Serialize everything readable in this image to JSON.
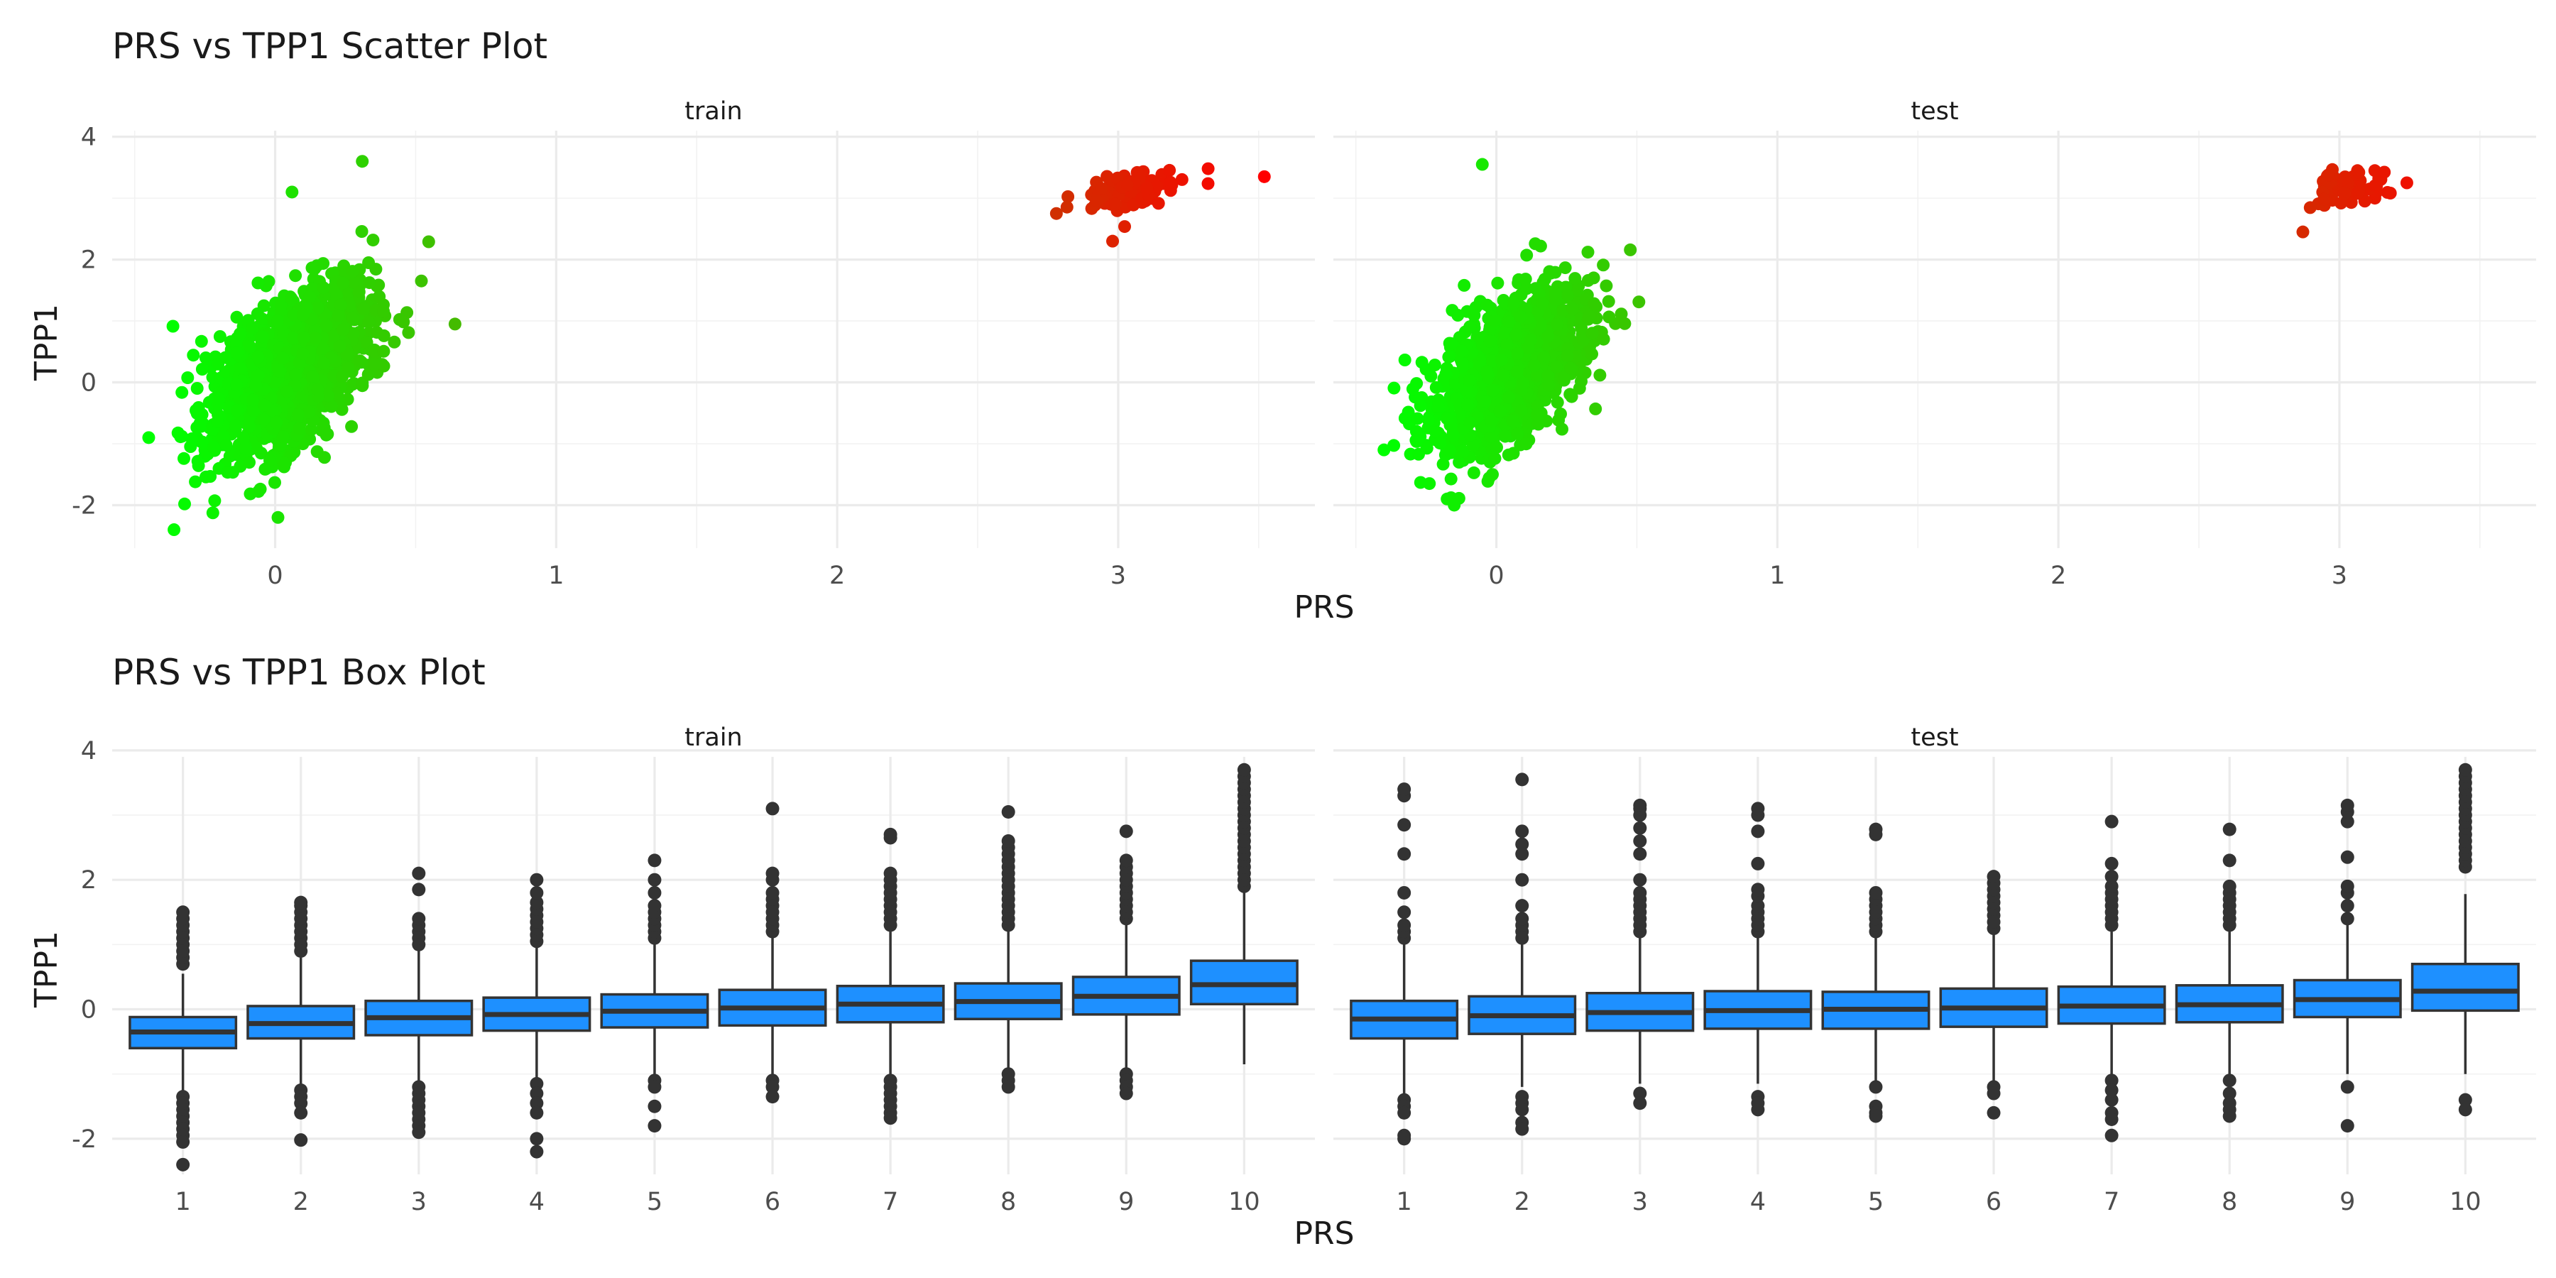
{
  "chart_data": [
    {
      "type": "scatter",
      "title": "PRS vs TPP1 Scatter Plot",
      "xlabel": "PRS",
      "ylabel": "TPP1",
      "xlim": [
        -0.58,
        3.7
      ],
      "ylim": [
        -2.7,
        4.1
      ],
      "x_ticks": [
        0,
        1,
        2,
        3
      ],
      "y_ticks": [
        -2,
        0,
        2,
        4
      ],
      "grid": true,
      "legend": "none",
      "color_scale": {
        "low": "#00ff00",
        "high": "#ff0000",
        "low_value": -0.4,
        "high_value": 3.5,
        "variable": "PRS"
      },
      "panels": [
        {
          "name": "train",
          "clusters": [
            {
              "n": 1500,
              "x_mean": 0.05,
              "x_sd": 0.14,
              "y_mean": 0.2,
              "y_sd": 0.7,
              "corr": 0.55,
              "x_range": [
                -0.4,
                0.65
              ],
              "y_range": [
                -2.3,
                3.4
              ]
            },
            {
              "n": 90,
              "x_mean": 3.05,
              "x_sd": 0.1,
              "y_mean": 3.15,
              "y_sd": 0.18,
              "corr": 0.4,
              "x_range": [
                2.8,
                3.35
              ],
              "y_range": [
                2.3,
                3.7
              ]
            }
          ],
          "points": [
            {
              "x": -0.36,
              "y": -2.4
            },
            {
              "x": 0.31,
              "y": 3.6
            },
            {
              "x": 0.06,
              "y": 3.1
            },
            {
              "x": 0.64,
              "y": 0.95
            },
            {
              "x": -0.45,
              "y": -0.9
            },
            {
              "x": 0.01,
              "y": -2.2
            },
            {
              "x": 3.52,
              "y": 3.35
            },
            {
              "x": 3.32,
              "y": 3.48
            },
            {
              "x": 2.78,
              "y": 2.75
            },
            {
              "x": 2.98,
              "y": 2.3
            }
          ]
        },
        {
          "name": "test",
          "clusters": [
            {
              "n": 1100,
              "x_mean": 0.05,
              "x_sd": 0.14,
              "y_mean": 0.2,
              "y_sd": 0.7,
              "corr": 0.55,
              "x_range": [
                -0.4,
                0.58
              ],
              "y_range": [
                -2.0,
                3.4
              ]
            },
            {
              "n": 60,
              "x_mean": 3.03,
              "x_sd": 0.07,
              "y_mean": 3.15,
              "y_sd": 0.16,
              "corr": 0.3,
              "x_range": [
                2.85,
                3.25
              ],
              "y_range": [
                2.4,
                3.7
              ]
            }
          ],
          "points": [
            {
              "x": -0.05,
              "y": 3.55
            },
            {
              "x": -0.4,
              "y": -1.1
            },
            {
              "x": -0.15,
              "y": -2.0
            },
            {
              "x": 2.87,
              "y": 2.45
            },
            {
              "x": 3.24,
              "y": 3.25
            }
          ]
        }
      ]
    },
    {
      "type": "box",
      "title": "PRS vs TPP1 Box Plot",
      "xlabel": "PRS",
      "ylabel": "TPP1",
      "categories": [
        "1",
        "2",
        "3",
        "4",
        "5",
        "6",
        "7",
        "8",
        "9",
        "10"
      ],
      "ylim": [
        -2.55,
        3.9
      ],
      "y_ticks": [
        -2,
        0,
        2,
        4
      ],
      "grid": true,
      "box_fill": "#1e90ff",
      "box_line": "#333333",
      "panels": [
        {
          "name": "train",
          "boxes": [
            {
              "q1": -0.6,
              "median": -0.35,
              "q3": -0.12,
              "whisker_low": -1.3,
              "whisker_high": 0.55,
              "outliers_low": [
                -1.35,
                -1.45,
                -1.55,
                -1.65,
                -1.75,
                -1.85,
                -1.95,
                -2.05,
                -2.4
              ],
              "outliers_high": [
                0.7,
                0.8,
                0.9,
                1.0,
                1.1,
                1.2,
                1.3,
                1.4,
                1.5
              ]
            },
            {
              "q1": -0.45,
              "median": -0.22,
              "q3": 0.05,
              "whisker_low": -1.15,
              "whisker_high": 0.8,
              "outliers_low": [
                -1.25,
                -1.35,
                -1.45,
                -1.6,
                -2.02
              ],
              "outliers_high": [
                0.9,
                1.0,
                1.1,
                1.2,
                1.3,
                1.4,
                1.5,
                1.6,
                1.65
              ]
            },
            {
              "q1": -0.4,
              "median": -0.13,
              "q3": 0.13,
              "whisker_low": -1.1,
              "whisker_high": 0.9,
              "outliers_low": [
                -1.2,
                -1.3,
                -1.4,
                -1.5,
                -1.6,
                -1.7,
                -1.8,
                -1.9
              ],
              "outliers_high": [
                1.0,
                1.1,
                1.2,
                1.3,
                1.4,
                1.85,
                2.1
              ]
            },
            {
              "q1": -0.33,
              "median": -0.08,
              "q3": 0.18,
              "whisker_low": -1.05,
              "whisker_high": 0.95,
              "outliers_low": [
                -1.15,
                -1.3,
                -1.45,
                -1.6,
                -2.0,
                -2.2
              ],
              "outliers_high": [
                1.05,
                1.15,
                1.25,
                1.35,
                1.45,
                1.55,
                1.65,
                1.8,
                2.0
              ]
            },
            {
              "q1": -0.28,
              "median": -0.03,
              "q3": 0.23,
              "whisker_low": -1.05,
              "whisker_high": 1.0,
              "outliers_low": [
                -1.1,
                -1.2,
                -1.5,
                -1.8
              ],
              "outliers_high": [
                1.1,
                1.2,
                1.3,
                1.4,
                1.5,
                1.6,
                1.8,
                2.0,
                2.3
              ]
            },
            {
              "q1": -0.25,
              "median": 0.02,
              "q3": 0.3,
              "whisker_low": -1.05,
              "whisker_high": 1.1,
              "outliers_low": [
                -1.1,
                -1.2,
                -1.35
              ],
              "outliers_high": [
                1.2,
                1.3,
                1.4,
                1.5,
                1.6,
                1.7,
                1.8,
                2.0,
                2.1,
                3.1
              ]
            },
            {
              "q1": -0.2,
              "median": 0.08,
              "q3": 0.36,
              "whisker_low": -1.0,
              "whisker_high": 1.2,
              "outliers_low": [
                -1.1,
                -1.2,
                -1.3,
                -1.4,
                -1.5,
                -1.6,
                -1.68
              ],
              "outliers_high": [
                1.3,
                1.4,
                1.5,
                1.6,
                1.7,
                1.8,
                1.9,
                2.0,
                2.1,
                2.65,
                2.7
              ]
            },
            {
              "q1": -0.15,
              "median": 0.12,
              "q3": 0.4,
              "whisker_low": -0.95,
              "whisker_high": 1.25,
              "outliers_low": [
                -1.0,
                -1.1,
                -1.2
              ],
              "outliers_high": [
                1.3,
                1.4,
                1.5,
                1.6,
                1.7,
                1.8,
                1.9,
                2.0,
                2.1,
                2.2,
                2.3,
                2.4,
                2.5,
                2.6,
                3.05
              ]
            },
            {
              "q1": -0.08,
              "median": 0.2,
              "q3": 0.5,
              "whisker_low": -0.95,
              "whisker_high": 1.3,
              "outliers_low": [
                -1.0,
                -1.1,
                -1.2,
                -1.3
              ],
              "outliers_high": [
                1.4,
                1.5,
                1.6,
                1.7,
                1.8,
                1.9,
                2.0,
                2.1,
                2.2,
                2.3,
                2.75
              ]
            },
            {
              "q1": 0.08,
              "median": 0.38,
              "q3": 0.75,
              "whisker_low": -0.85,
              "whisker_high": 1.8,
              "outliers_low": [],
              "outliers_high": [
                1.9,
                2.0,
                2.1,
                2.2,
                2.3,
                2.4,
                2.5,
                2.6,
                2.7,
                2.8,
                2.9,
                3.0,
                3.1,
                3.2,
                3.3,
                3.4,
                3.5,
                3.6,
                3.7
              ]
            }
          ]
        },
        {
          "name": "test",
          "boxes": [
            {
              "q1": -0.45,
              "median": -0.15,
              "q3": 0.13,
              "whisker_low": -1.3,
              "whisker_high": 1.0,
              "outliers_low": [
                -1.4,
                -1.5,
                -1.6,
                -1.95,
                -2.0
              ],
              "outliers_high": [
                1.1,
                1.2,
                1.3,
                1.5,
                1.8,
                2.4,
                2.85,
                3.3,
                3.4
              ]
            },
            {
              "q1": -0.38,
              "median": -0.1,
              "q3": 0.2,
              "whisker_low": -1.2,
              "whisker_high": 1.0,
              "outliers_low": [
                -1.35,
                -1.45,
                -1.55,
                -1.75,
                -1.85
              ],
              "outliers_high": [
                1.1,
                1.2,
                1.3,
                1.4,
                1.6,
                2.0,
                2.4,
                2.55,
                2.75,
                3.55
              ]
            },
            {
              "q1": -0.33,
              "median": -0.05,
              "q3": 0.25,
              "whisker_low": -1.15,
              "whisker_high": 1.1,
              "outliers_low": [
                -1.3,
                -1.45
              ],
              "outliers_high": [
                1.2,
                1.3,
                1.4,
                1.5,
                1.6,
                1.7,
                1.8,
                2.0,
                2.4,
                2.6,
                2.8,
                3.0,
                3.1,
                3.15
              ]
            },
            {
              "q1": -0.3,
              "median": -0.02,
              "q3": 0.28,
              "whisker_low": -1.15,
              "whisker_high": 1.1,
              "outliers_low": [
                -1.35,
                -1.45,
                -1.55
              ],
              "outliers_high": [
                1.2,
                1.3,
                1.4,
                1.5,
                1.6,
                1.75,
                1.85,
                2.25,
                2.75,
                3.0,
                3.1
              ]
            },
            {
              "q1": -0.3,
              "median": 0.0,
              "q3": 0.27,
              "whisker_low": -1.1,
              "whisker_high": 1.1,
              "outliers_low": [
                -1.2,
                -1.5,
                -1.6,
                -1.65
              ],
              "outliers_high": [
                1.2,
                1.3,
                1.4,
                1.5,
                1.6,
                1.7,
                1.8,
                2.7,
                2.78
              ]
            },
            {
              "q1": -0.27,
              "median": 0.02,
              "q3": 0.32,
              "whisker_low": -1.1,
              "whisker_high": 1.15,
              "outliers_low": [
                -1.2,
                -1.3,
                -1.6
              ],
              "outliers_high": [
                1.25,
                1.35,
                1.45,
                1.55,
                1.65,
                1.75,
                1.85,
                1.95,
                2.05
              ]
            },
            {
              "q1": -0.22,
              "median": 0.05,
              "q3": 0.35,
              "whisker_low": -1.05,
              "whisker_high": 1.2,
              "outliers_low": [
                -1.1,
                -1.25,
                -1.4,
                -1.6,
                -1.7,
                -1.95
              ],
              "outliers_high": [
                1.3,
                1.4,
                1.5,
                1.6,
                1.7,
                1.8,
                1.9,
                2.05,
                2.25,
                2.9
              ]
            },
            {
              "q1": -0.2,
              "median": 0.07,
              "q3": 0.37,
              "whisker_low": -1.05,
              "whisker_high": 1.2,
              "outliers_low": [
                -1.1,
                -1.3,
                -1.45,
                -1.55,
                -1.65
              ],
              "outliers_high": [
                1.3,
                1.4,
                1.5,
                1.6,
                1.7,
                1.8,
                1.9,
                2.3,
                2.78
              ]
            },
            {
              "q1": -0.12,
              "median": 0.15,
              "q3": 0.45,
              "whisker_low": -1.0,
              "whisker_high": 1.3,
              "outliers_low": [
                -1.2,
                -1.8
              ],
              "outliers_high": [
                1.4,
                1.6,
                1.8,
                1.9,
                2.35,
                2.9,
                3.05,
                3.15
              ]
            },
            {
              "q1": -0.02,
              "median": 0.28,
              "q3": 0.7,
              "whisker_low": -1.0,
              "whisker_high": 1.78,
              "outliers_low": [
                -1.4,
                -1.55
              ],
              "outliers_high": [
                2.2,
                2.3,
                2.4,
                2.5,
                2.6,
                2.7,
                2.8,
                2.9,
                3.0,
                3.1,
                3.2,
                3.3,
                3.4,
                3.5,
                3.6,
                3.7
              ]
            }
          ]
        }
      ]
    }
  ]
}
